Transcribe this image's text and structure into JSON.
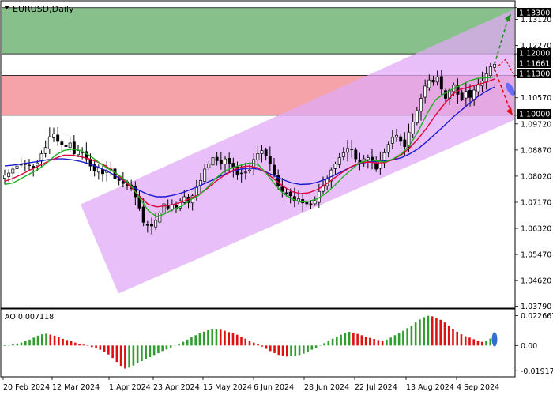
{
  "window": {
    "title": "EURUSD,Daily",
    "title_icon": "chevron-down-icon"
  },
  "price_axis": {
    "ticks": [
      "1.13120",
      "1.12270",
      "1.10570",
      "1.09720",
      "1.08870",
      "1.08020",
      "1.07170",
      "1.06320",
      "1.05470",
      "1.04620",
      "1.03790"
    ],
    "tick_values": [
      1.1312,
      1.1227,
      1.1057,
      1.0972,
      1.0887,
      1.0802,
      1.0717,
      1.0632,
      1.0547,
      1.0462,
      1.0379
    ]
  },
  "level_labels": {
    "target": "1.13300",
    "resistance": "1.12000",
    "current": "1.11661",
    "support_top": "1.11300",
    "support_bottom": "1.10000"
  },
  "ao": {
    "label": "AO 0.007118",
    "ticks": [
      "0.022667",
      "0.00",
      "-0.019172"
    ],
    "tick_values": [
      0.022667,
      0,
      -0.019172
    ]
  },
  "date_axis": {
    "labels": [
      "20 Feb 2024",
      "12 Mar 2024",
      "1 Apr 2024",
      "23 Apr 2024",
      "15 May 2024",
      "6 Jun 2024",
      "28 Jun 2024",
      "22 Jul 2024",
      "13 Aug 2024",
      "4 Sep 2024"
    ]
  },
  "colors": {
    "bull_zone": "#88c08c",
    "bear_zone": "#f5a3a8",
    "channel": "#e0aaf5",
    "ma_fast": "#20b020",
    "ma_mid": "#e0003a",
    "ma_slow": "#1a1ad0",
    "ao_up": "#2e9e2e",
    "ao_down": "#e01010",
    "arrow_up": "#1e8c1e",
    "arrow_down": "#e01010",
    "arrow_mid": "#6a6aff"
  },
  "chart_data": [
    {
      "type": "candlestick",
      "title": "EURUSD,Daily",
      "xlabel": "",
      "ylabel": "",
      "ylim": [
        1.0375,
        1.137
      ],
      "x_dates": [
        "20 Feb 2024",
        "12 Mar 2024",
        "1 Apr 2024",
        "23 Apr 2024",
        "15 May 2024",
        "6 Jun 2024",
        "28 Jun 2024",
        "22 Jul 2024",
        "13 Aug 2024",
        "4 Sep 2024"
      ],
      "last_price": 1.11661,
      "zones": [
        {
          "name": "upper zone",
          "from": 1.12,
          "to": 1.135,
          "color": "green"
        },
        {
          "name": "lower zone",
          "from": 1.1,
          "to": 1.113,
          "color": "red"
        }
      ],
      "channel": {
        "lower_start": 1.042,
        "lower_end": 1.0985,
        "upper_start": 1.071,
        "upper_end": 1.1345
      },
      "forecast": {
        "up_target": 1.133,
        "down_target": 1.1
      },
      "close_series": [
        1.0805,
        1.0812,
        1.0825,
        1.0835,
        1.084,
        1.0842,
        1.0838,
        1.083,
        1.0845,
        1.0875,
        1.0895,
        1.093,
        1.094,
        1.0915,
        1.0905,
        1.0898,
        1.091,
        1.0875,
        1.0885,
        1.088,
        1.0858,
        1.0835,
        1.0818,
        1.0828,
        1.081,
        1.082,
        1.0825,
        1.0795,
        1.0788,
        1.0778,
        1.0772,
        1.0762,
        1.0735,
        1.0698,
        1.0652,
        1.0642,
        1.064,
        1.0658,
        1.0682,
        1.0712,
        1.0698,
        1.0708,
        1.0695,
        1.0722,
        1.0735,
        1.0716,
        1.0738,
        1.0765,
        1.0788,
        1.0825,
        1.0842,
        1.0862,
        1.0852,
        1.0842,
        1.0858,
        1.0842,
        1.0828,
        1.0808,
        1.0812,
        1.0815,
        1.0822,
        1.0856,
        1.0875,
        1.0885,
        1.0868,
        1.0842,
        1.0808,
        1.0772,
        1.0752,
        1.0748,
        1.0738,
        1.0722,
        1.0728,
        1.0715,
        1.0712,
        1.0712,
        1.0722,
        1.0752,
        1.0772,
        1.0792,
        1.0822,
        1.0842,
        1.0862,
        1.0878,
        1.0892,
        1.0888,
        1.0858,
        1.0842,
        1.0858,
        1.0862,
        1.0848,
        1.0825,
        1.0852,
        1.0878,
        1.0905,
        1.0928,
        1.0935,
        1.0915,
        1.0898,
        1.0945,
        1.0978,
        1.1015,
        1.1055,
        1.1095,
        1.1115,
        1.1108,
        1.1125,
        1.1085,
        1.1055,
        1.1082,
        1.1098,
        1.1068,
        1.1052,
        1.1078,
        1.1058,
        1.1082,
        1.1098,
        1.1112,
        1.1135,
        1.1158,
        1.1166
      ],
      "ma_fast": [
        1.0775,
        1.078,
        1.0795,
        1.081,
        1.0825,
        1.0845,
        1.087,
        1.0885,
        1.089,
        1.0885,
        1.087,
        1.085,
        1.083,
        1.0815,
        1.0795,
        1.077,
        1.073,
        1.069,
        1.067,
        1.068,
        1.0695,
        1.0705,
        1.0725,
        1.074,
        1.0765,
        1.0795,
        1.0818,
        1.083,
        1.0838,
        1.0845,
        1.084,
        1.081,
        1.0775,
        1.0745,
        1.0728,
        1.0718,
        1.072,
        1.0728,
        1.0745,
        1.077,
        1.0798,
        1.0822,
        1.0845,
        1.0855,
        1.0852,
        1.0848,
        1.0858,
        1.0875,
        1.0905,
        1.095,
        1.1005,
        1.105,
        1.107,
        1.1085,
        1.1098,
        1.1112,
        1.112,
        1.1122,
        1.1125
      ],
      "ma_mid": [
        1.0785,
        1.0795,
        1.0808,
        1.0822,
        1.0835,
        1.0848,
        1.086,
        1.087,
        1.087,
        1.0865,
        1.0858,
        1.0848,
        1.0835,
        1.0815,
        1.079,
        1.0765,
        1.0735,
        1.071,
        1.0702,
        1.0705,
        1.071,
        1.0718,
        1.073,
        1.0742,
        1.0762,
        1.0785,
        1.0805,
        1.082,
        1.0832,
        1.0835,
        1.0828,
        1.0812,
        1.079,
        1.0768,
        1.0752,
        1.0745,
        1.0748,
        1.0758,
        1.0775,
        1.0795,
        1.0815,
        1.0832,
        1.0845,
        1.0848,
        1.0845,
        1.0846,
        1.0856,
        1.0872,
        1.0895,
        1.0925,
        1.096,
        1.1,
        1.1035,
        1.1068,
        1.1085,
        1.1092,
        1.11,
        1.1108,
        1.1118
      ],
      "ma_slow": [
        1.0835,
        1.0838,
        1.0842,
        1.0846,
        1.085,
        1.0855,
        1.0858,
        1.0858,
        1.0855,
        1.085,
        1.0842,
        1.0832,
        1.082,
        1.0805,
        1.0788,
        1.077,
        1.0755,
        1.0742,
        1.0735,
        1.0735,
        1.074,
        1.0748,
        1.0758,
        1.077,
        1.0782,
        1.0795,
        1.0808,
        1.0818,
        1.0825,
        1.0828,
        1.0825,
        1.0815,
        1.0802,
        1.079,
        1.078,
        1.0775,
        1.0776,
        1.0782,
        1.0792,
        1.0805,
        1.0818,
        1.0832,
        1.0842,
        1.0848,
        1.085,
        1.0852,
        1.0855,
        1.0862,
        1.0875,
        1.0892,
        1.0915,
        1.094,
        1.0965,
        1.0992,
        1.1015,
        1.1038,
        1.106,
        1.1078,
        1.1092
      ]
    },
    {
      "type": "bar",
      "title": "AO 0.007118",
      "ylim": [
        -0.022,
        0.026
      ],
      "last_value": 0.007118,
      "values": [
        -0.0004,
        0.0002,
        0.0008,
        0.0015,
        0.0022,
        0.0032,
        0.0045,
        0.006,
        0.0075,
        0.0085,
        0.009,
        0.0083,
        0.0075,
        0.0062,
        0.0051,
        0.0042,
        0.0033,
        0.0022,
        0.0014,
        0.0006,
        -0.0003,
        -0.0012,
        -0.0021,
        -0.0032,
        -0.0046,
        -0.0068,
        -0.0095,
        -0.0125,
        -0.0155,
        -0.0175,
        -0.0168,
        -0.0152,
        -0.0135,
        -0.0118,
        -0.0102,
        -0.0088,
        -0.0072,
        -0.0058,
        -0.0042,
        -0.003,
        -0.0015,
        -0.0002,
        0.0012,
        0.0028,
        0.0045,
        0.0062,
        0.0078,
        0.0092,
        0.0105,
        0.0116,
        0.0122,
        0.0126,
        0.012,
        0.0112,
        0.0102,
        0.0095,
        0.0082,
        0.0068,
        0.0052,
        0.0038,
        0.0022,
        0.0008,
        -0.0008,
        -0.0025,
        -0.0042,
        -0.0058,
        -0.0071,
        -0.0078,
        -0.0084,
        -0.0082,
        -0.0078,
        -0.0072,
        -0.0062,
        -0.0048,
        -0.0032,
        -0.0016,
        0.0002,
        0.0018,
        0.0036,
        0.0052,
        0.0068,
        0.0082,
        0.0094,
        0.0104,
        0.0098,
        0.0088,
        0.0078,
        0.0068,
        0.0058,
        0.005,
        0.0042,
        0.0038,
        0.0045,
        0.006,
        0.0078,
        0.0095,
        0.0112,
        0.0132,
        0.0152,
        0.0175,
        0.0198,
        0.0215,
        0.0226,
        0.0222,
        0.021,
        0.0195,
        0.0175,
        0.0152,
        0.0128,
        0.0105,
        0.0085,
        0.007,
        0.006,
        0.0048,
        0.0035,
        0.0028,
        0.0035,
        0.0052,
        0.0071
      ]
    }
  ]
}
